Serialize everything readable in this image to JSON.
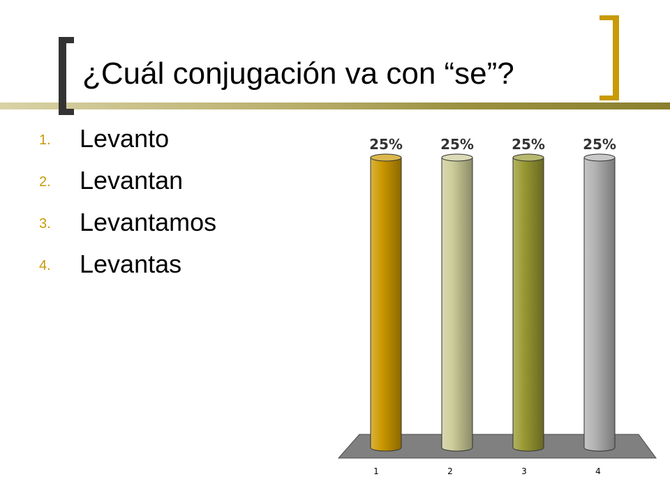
{
  "slide": {
    "title": "¿Cuál conjugación va con “se”?",
    "options": [
      {
        "number": "1.",
        "text": "Levanto"
      },
      {
        "number": "2.",
        "text": "Levantan"
      },
      {
        "number": "3.",
        "text": "Levantamos"
      },
      {
        "number": "4.",
        "text": "Levantas"
      }
    ]
  },
  "colors": {
    "accent": "#C89A06",
    "bracket_dark": "#333333",
    "floor": "#808080"
  },
  "chart_data": {
    "type": "bar",
    "categories": [
      "1",
      "2",
      "3",
      "4"
    ],
    "values": [
      25,
      25,
      25,
      25
    ],
    "data_labels": [
      "25%",
      "25%",
      "25%",
      "25%"
    ],
    "colors": [
      "#CC9900",
      "#CCCC99",
      "#999933",
      "#B2B2B2"
    ],
    "ylim": [
      0,
      25
    ],
    "grid": false,
    "legend": "none"
  }
}
